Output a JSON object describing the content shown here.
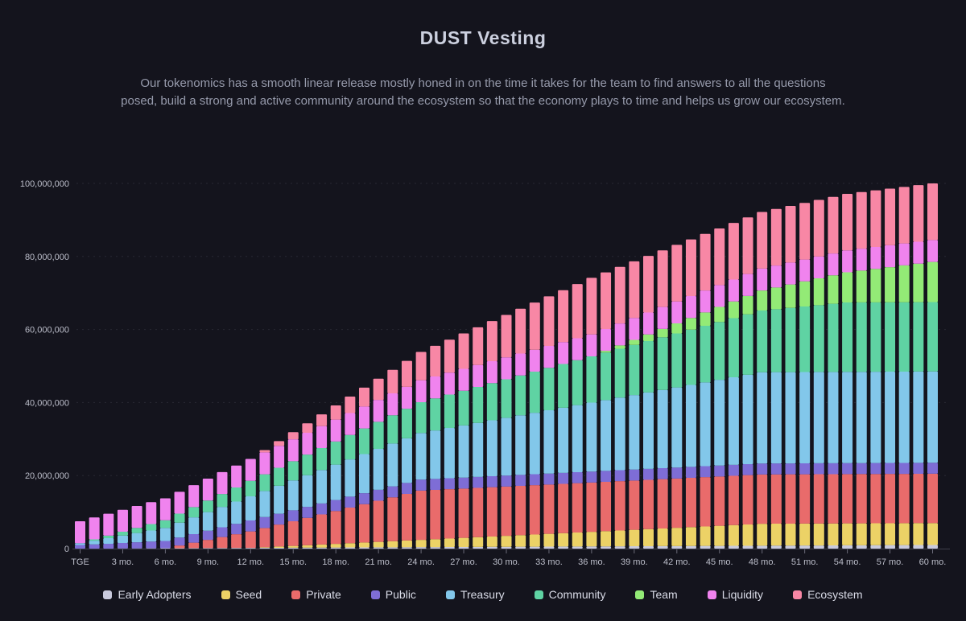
{
  "header": {
    "title": "DUST Vesting",
    "subtitle": "Our tokenomics has a smooth linear release mostly honed in on the time it takes for the team to find answers to all the questions posed, build a strong and active community around the ecosystem so that the economy plays to time and helps us grow our ecosystem."
  },
  "colors": {
    "background": "#14141d",
    "grid_line": "#3a3a46",
    "axis_line": "#4a4a57",
    "tick_mark": "#6a6a78",
    "axis_label_text": "#bcbeca",
    "legend_text": "#d9dbe7"
  },
  "chart_data": {
    "type": "bar",
    "stacked": true,
    "title": "DUST Vesting",
    "xlabel": "",
    "ylabel": "",
    "grid": "dashed-horizontal",
    "legend_position": "bottom",
    "months_min": 0,
    "months_max": 60,
    "bar_count": 61,
    "x_tick_every_months": 3,
    "x_tick_labels": [
      "TGE",
      "3 mo.",
      "6 mo.",
      "9 mo.",
      "12 mo.",
      "15 mo.",
      "18 mo.",
      "21 mo.",
      "24 mo.",
      "27 mo.",
      "30 mo.",
      "33 mo.",
      "36 mo.",
      "39 mo.",
      "42 mo.",
      "45 mo.",
      "48 mo.",
      "51 mo.",
      "54 mo.",
      "57 mo.",
      "60 mo."
    ],
    "y_axis": {
      "min": 0,
      "max": 100000000,
      "ticks": [
        {
          "value": 0,
          "label": "0"
        },
        {
          "value": 20000000,
          "label": "20,000,000"
        },
        {
          "value": 40000000,
          "label": "40,000,000"
        },
        {
          "value": 60000000,
          "label": "60,000,000"
        },
        {
          "value": 80000000,
          "label": "80,000,000"
        },
        {
          "value": 100000000,
          "label": "100,000,000"
        }
      ]
    },
    "series_note": "Stacked bottom-to-top in listed order. Cumulative vested tokens per month m = tge_amount + (total - tge_amount) * clamp((m - vest_start_month) / (vest_end_month - vest_start_month), 0, 1); instant unlock when vest_end_month <= vest_start_month.",
    "series": [
      {
        "name": "Early Adopters",
        "color": "#c9cadd",
        "total": 1000000,
        "tge_amount": 0,
        "vest_start_month": 0,
        "vest_end_month": 60
      },
      {
        "name": "Seed",
        "color": "#ecd266",
        "total": 6000000,
        "tge_amount": 0,
        "vest_start_month": 12,
        "vest_end_month": 48
      },
      {
        "name": "Private",
        "color": "#e96b6b",
        "total": 13500000,
        "tge_amount": 0,
        "vest_start_month": 6,
        "vest_end_month": 24
      },
      {
        "name": "Public",
        "color": "#7e6dd6",
        "total": 3000000,
        "tge_amount": 1000000,
        "vest_start_month": 0,
        "vest_end_month": 12
      },
      {
        "name": "Treasury",
        "color": "#82c7ea",
        "total": 25000000,
        "tge_amount": 500000,
        "vest_start_month": 0,
        "vest_end_month": 48
      },
      {
        "name": "Community",
        "color": "#5fd3a3",
        "total": 19000000,
        "tge_amount": 0,
        "vest_start_month": 0,
        "vest_end_month": 54
      },
      {
        "name": "Team",
        "color": "#93ea76",
        "total": 11000000,
        "tge_amount": 0,
        "vest_start_month": 36,
        "vest_end_month": 60
      },
      {
        "name": "Liquidity",
        "color": "#f083ee",
        "total": 6000000,
        "tge_amount": 6000000,
        "vest_start_month": 0,
        "vest_end_month": 0
      },
      {
        "name": "Ecosystem",
        "color": "#f887a5",
        "total": 15500000,
        "tge_amount": 0,
        "vest_start_month": 12,
        "vest_end_month": 36
      }
    ],
    "totals_checkpoints": {
      "TGE": 7500000,
      "12 mo.": 24500000,
      "24 mo.": 53800000,
      "36 mo.": 74100000,
      "48 mo.": 92200000,
      "60 mo.": 100000000
    }
  }
}
